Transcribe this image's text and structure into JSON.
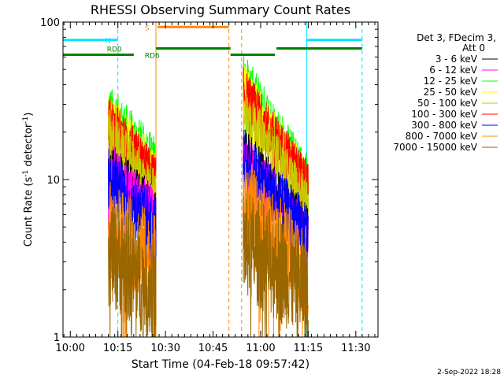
{
  "chart_data": {
    "type": "line",
    "title": "RHESSI Observing Summary Count Rates",
    "xlabel": "Start Time (04-Feb-18 09:57:42)",
    "ylabel": "Count Rate (s",
    "ylabel_sup": "-1",
    "ylabel_tail": " detector",
    "ylabel_tail_sup": "-1",
    "ylabel_close": ")",
    "yscale": "log",
    "ylim": [
      1,
      100
    ],
    "xlim": [
      "09:57:42",
      "11:37:00"
    ],
    "xticks": [
      {
        "time": "10:00",
        "label": "10:00"
      },
      {
        "time": "10:15",
        "label": "10:15"
      },
      {
        "time": "10:30",
        "label": "10:30"
      },
      {
        "time": "10:45",
        "label": "10:45"
      },
      {
        "time": "11:00",
        "label": "11:00"
      },
      {
        "time": "11:15",
        "label": "11:15"
      },
      {
        "time": "11:30",
        "label": "11:30"
      }
    ],
    "yticks": [
      {
        "value": 1,
        "label": "1"
      },
      {
        "value": 10,
        "label": "10"
      },
      {
        "value": 100,
        "label": "100"
      }
    ],
    "legend": {
      "placement": "right",
      "header": [
        "Det 3, FDecim 3,",
        "Att 0"
      ],
      "entries": [
        {
          "name": "3 - 6 keV",
          "color": "#000000"
        },
        {
          "name": "6 - 12 keV",
          "color": "#ff00ff"
        },
        {
          "name": "12 - 25 keV",
          "color": "#00ff00"
        },
        {
          "name": "25 - 50 keV",
          "color": "#ffff00"
        },
        {
          "name": "50 - 100 keV",
          "color": "#c8c800"
        },
        {
          "name": "100 - 300 keV",
          "color": "#ff0000"
        },
        {
          "name": "300 - 800 keV",
          "color": "#0000ff"
        },
        {
          "name": "800 - 7000 keV",
          "color": "#ff8800"
        },
        {
          "name": "7000 - 15000 keV",
          "color": "#996600"
        }
      ]
    },
    "flags": [
      {
        "label": "N",
        "color": "#00e5ff",
        "level": 77,
        "segments": [
          [
            "09:57:42",
            "10:15:00"
          ],
          [
            "11:14:30",
            "11:32:00"
          ]
        ]
      },
      {
        "label": "S",
        "color": "#ff8800",
        "level": 93,
        "segments": [
          [
            "10:27:30",
            "10:50:00"
          ]
        ]
      },
      {
        "label": "RD0",
        "color": "#008000",
        "level": 68,
        "segments": [
          [
            "10:27:00",
            "10:50:30"
          ],
          [
            "11:05:00",
            "11:32:00"
          ]
        ]
      },
      {
        "label": "RD6",
        "color": "#008000",
        "level": 62,
        "segments": [
          [
            "09:57:42",
            "10:20:00"
          ],
          [
            "10:50:30",
            "11:04:30"
          ]
        ]
      }
    ],
    "vlines": [
      {
        "time": "09:57:42",
        "color": "#00e5ff",
        "style": "solid"
      },
      {
        "time": "10:15:00",
        "color": "#00e5ff",
        "style": "dashed"
      },
      {
        "time": "10:27:00",
        "color": "#ff8800",
        "style": "solid"
      },
      {
        "time": "10:50:00",
        "color": "#ff8800",
        "style": "dashed"
      },
      {
        "time": "10:54:00",
        "color": "#ff8800",
        "style": "dashed"
      },
      {
        "time": "11:14:30",
        "color": "#00e5ff",
        "style": "solid"
      },
      {
        "time": "11:32:00",
        "color": "#00e5ff",
        "style": "dashed"
      }
    ],
    "intervals": [
      {
        "start": "10:12:00",
        "end": "10:27:00"
      },
      {
        "start": "10:54:30",
        "end": "11:15:00"
      }
    ],
    "series": [
      {
        "name": "12 - 25 keV",
        "color": "#00ff00",
        "start": [
          28,
          45
        ],
        "end": [
          13,
          10
        ],
        "noise": 0.16
      },
      {
        "name": "25 - 50 keV",
        "color": "#ffff00",
        "start": [
          25,
          38
        ],
        "end": [
          11,
          9
        ],
        "noise": 0.16
      },
      {
        "name": "100 - 300 keV",
        "color": "#ff0000",
        "start": [
          24,
          36
        ],
        "end": [
          10,
          9
        ],
        "noise": 0.16
      },
      {
        "name": "50 - 100 keV",
        "color": "#c8c800",
        "start": [
          20,
          28
        ],
        "end": [
          8,
          7
        ],
        "noise": 0.16
      },
      {
        "name": "3 - 6 keV",
        "color": "#000000",
        "start": [
          13,
          16
        ],
        "end": [
          6.5,
          5
        ],
        "noise": 0.14
      },
      {
        "name": "6 - 12 keV",
        "color": "#ff00ff",
        "start": [
          12,
          14
        ],
        "end": [
          6,
          4.5
        ],
        "noise": 0.16
      },
      {
        "name": "300 - 800 keV",
        "color": "#0000ff",
        "start": [
          10,
          13
        ],
        "end": [
          5,
          4.5
        ],
        "noise": 0.2
      },
      {
        "name": "800 - 7000 keV",
        "color": "#ff8800",
        "start": [
          5,
          7
        ],
        "end": [
          3,
          2.5
        ],
        "noise": 0.3
      },
      {
        "name": "7000 - 15000 keV",
        "color": "#996600",
        "start": [
          3.5,
          4
        ],
        "end": [
          2,
          2
        ],
        "noise": 0.35
      }
    ]
  },
  "footer": {
    "date": "2-Sep-2022 18:28"
  }
}
